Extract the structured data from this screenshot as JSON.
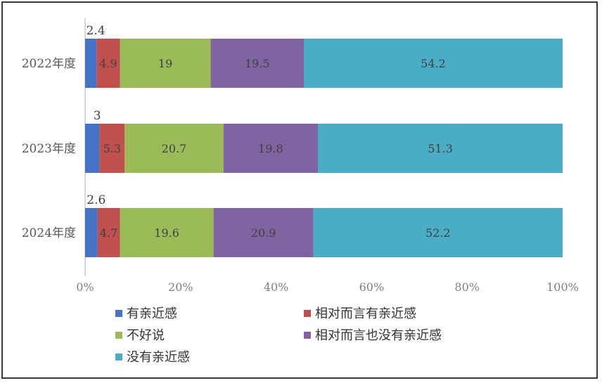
{
  "chart_data": {
    "type": "bar",
    "orientation": "horizontal",
    "stacked": "percent",
    "categories": [
      "2022年度",
      "2023年度",
      "2024年度"
    ],
    "series": [
      {
        "name": "有亲近感",
        "values": [
          2.4,
          3,
          2.6
        ],
        "color": "#4472C4"
      },
      {
        "name": "相对而言有亲近感",
        "values": [
          4.9,
          5.3,
          4.7
        ],
        "color": "#C0504D"
      },
      {
        "name": "不好说",
        "values": [
          19,
          20.7,
          19.6
        ],
        "color": "#9BBB59"
      },
      {
        "name": "相对而言也没有亲近感",
        "values": [
          19.5,
          19.8,
          20.9
        ],
        "color": "#8064A2"
      },
      {
        "name": "没有亲近感",
        "values": [
          54.2,
          51.3,
          52.2
        ],
        "color": "#4BACC6"
      }
    ],
    "x_ticks": [
      "0%",
      "20%",
      "40%",
      "60%",
      "80%",
      "100%"
    ],
    "xlim": [
      0,
      100
    ],
    "grid": false,
    "legend_position": "bottom"
  }
}
